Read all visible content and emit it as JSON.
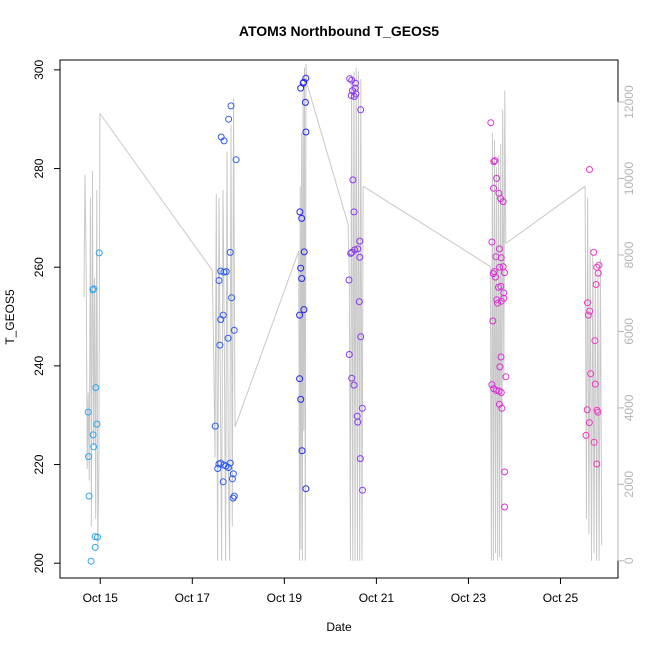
{
  "chart_data": {
    "type": "scatter",
    "title": "ATOM3 Northbound T_GEOS5",
    "xlabel": "Date",
    "ylabel": "T_GEOS5",
    "xlim": [
      "2017-10-14T03:00",
      "2017-10-26T06:00"
    ],
    "ylim": [
      197,
      302
    ],
    "y2lim": [
      -450,
      13100
    ],
    "x_ticks": [
      {
        "date": "2017-10-15T00:00",
        "label": "Oct 15"
      },
      {
        "date": "2017-10-17T00:00",
        "label": "Oct 17"
      },
      {
        "date": "2017-10-19T00:00",
        "label": "Oct 19"
      },
      {
        "date": "2017-10-21T00:00",
        "label": "Oct 21"
      },
      {
        "date": "2017-10-23T00:00",
        "label": "Oct 23"
      },
      {
        "date": "2017-10-25T00:00",
        "label": "Oct 25"
      }
    ],
    "y_ticks": [
      200,
      220,
      240,
      260,
      280,
      300
    ],
    "y2_ticks": [
      0,
      2000,
      4000,
      6000,
      8000,
      10000,
      12000
    ],
    "grid": false,
    "colors": {
      "axis": "#000000",
      "altitude_line": "#c8c8c8",
      "secondary_axis": "#b4b4b4",
      "point_gradient": [
        "#29b6f6",
        "#1a1aff",
        "#8a2be2",
        "#ff1fd0"
      ]
    },
    "series": [
      {
        "role": "points",
        "segments": [
          {
            "color": "#2fa6ee",
            "points": [
              [
                "2017-10-14T20:06",
                255.4
              ],
              [
                "2017-10-14T20:35",
                255.6
              ],
              [
                "2017-10-14T17:42",
                230.6
              ],
              [
                "2017-10-14T17:54",
                221.6
              ],
              [
                "2017-10-14T20:16",
                226.0
              ],
              [
                "2017-10-14T20:35",
                223.6
              ],
              [
                "2017-10-14T18:11",
                213.6
              ],
              [
                "2017-10-14T19:12",
                200.4
              ],
              [
                "2017-10-14T21:21",
                203.2
              ],
              [
                "2017-10-14T21:21",
                205.4
              ],
              [
                "2017-10-14T22:32",
                205.3
              ],
              [
                "2017-10-14T22:15",
                228.2
              ],
              [
                "2017-10-14T21:41",
                235.6
              ],
              [
                "2017-10-14T23:27",
                262.9
              ]
            ]
          },
          {
            "color": "#2f5cf2",
            "points": [
              [
                "2017-10-17T12:00",
                227.8
              ],
              [
                "2017-10-17T13:16",
                219.2
              ],
              [
                "2017-10-17T13:51",
                220.1
              ],
              [
                "2017-10-17T14:49",
                220.3
              ],
              [
                "2017-10-17T16:27",
                219.9
              ],
              [
                "2017-10-17T17:31",
                219.7
              ],
              [
                "2017-10-17T18:48",
                219.4
              ],
              [
                "2017-10-17T19:46",
                220.3
              ],
              [
                "2017-10-17T16:07",
                216.5
              ],
              [
                "2017-10-17T21:26",
                218.1
              ],
              [
                "2017-10-17T20:53",
                217.1
              ],
              [
                "2017-10-17T21:17",
                213.2
              ],
              [
                "2017-10-17T21:54",
                213.6
              ],
              [
                "2017-10-17T14:20",
                244.2
              ],
              [
                "2017-10-17T18:39",
                245.6
              ],
              [
                "2017-10-17T21:50",
                247.2
              ],
              [
                "2017-10-17T16:08",
                250.3
              ],
              [
                "2017-10-17T14:49",
                249.4
              ],
              [
                "2017-10-17T20:28",
                253.8
              ],
              [
                "2017-10-17T13:56",
                257.3
              ],
              [
                "2017-10-17T14:49",
                259.2
              ],
              [
                "2017-10-17T16:28",
                259.0
              ],
              [
                "2017-10-17T17:41",
                259.1
              ],
              [
                "2017-10-17T19:46",
                263.0
              ],
              [
                "2017-10-17T15:05",
                286.4
              ],
              [
                "2017-10-17T16:31",
                285.6
              ],
              [
                "2017-10-17T22:51",
                281.8
              ],
              [
                "2017-10-17T18:54",
                290.0
              ],
              [
                "2017-10-17T20:10",
                292.7
              ]
            ]
          },
          {
            "color": "#2525ee",
            "points": [
              [
                "2017-10-19T11:12",
                298.3
              ],
              [
                "2017-10-19T10:06",
                297.5
              ],
              [
                "2017-10-19T09:50",
                297.3
              ],
              [
                "2017-10-19T08:33",
                296.3
              ],
              [
                "2017-10-19T11:00",
                293.4
              ],
              [
                "2017-10-19T11:14",
                287.4
              ],
              [
                "2017-10-19T08:07",
                271.2
              ],
              [
                "2017-10-19T09:04",
                269.9
              ],
              [
                "2017-10-19T10:22",
                263.1
              ],
              [
                "2017-10-19T08:33",
                259.8
              ],
              [
                "2017-10-19T09:04",
                257.7
              ],
              [
                "2017-10-19T10:13",
                251.4
              ],
              [
                "2017-10-19T07:56",
                250.3
              ],
              [
                "2017-10-19T07:56",
                237.4
              ],
              [
                "2017-10-19T08:33",
                233.2
              ],
              [
                "2017-10-19T09:12",
                222.8
              ],
              [
                "2017-10-19T11:14",
                215.1
              ]
            ]
          },
          {
            "color": "#8c3af0",
            "points": [
              [
                "2017-10-20T10:04",
                298.2
              ],
              [
                "2017-10-20T11:08",
                297.9
              ],
              [
                "2017-10-20T13:03",
                297.3
              ],
              [
                "2017-10-20T12:58",
                296.3
              ],
              [
                "2017-10-20T11:32",
                295.8
              ],
              [
                "2017-10-20T13:20",
                295.1
              ],
              [
                "2017-10-20T10:56",
                294.8
              ],
              [
                "2017-10-20T12:30",
                294.6
              ],
              [
                "2017-10-20T15:50",
                291.9
              ],
              [
                "2017-10-20T11:46",
                277.7
              ],
              [
                "2017-10-20T12:19",
                271.2
              ],
              [
                "2017-10-20T15:21",
                265.3
              ],
              [
                "2017-10-20T14:16",
                263.7
              ],
              [
                "2017-10-20T12:40",
                263.5
              ],
              [
                "2017-10-20T11:10",
                263.0
              ],
              [
                "2017-10-20T10:35",
                262.8
              ],
              [
                "2017-10-20T15:22",
                262.0
              ],
              [
                "2017-10-20T09:42",
                257.4
              ],
              [
                "2017-10-20T15:04",
                253.0
              ],
              [
                "2017-10-20T15:50",
                245.9
              ],
              [
                "2017-10-20T09:53",
                242.3
              ],
              [
                "2017-10-20T11:08",
                237.5
              ],
              [
                "2017-10-20T12:19",
                236.1
              ],
              [
                "2017-10-20T14:00",
                229.8
              ],
              [
                "2017-10-20T14:19",
                228.6
              ],
              [
                "2017-10-20T16:38",
                231.4
              ],
              [
                "2017-10-20T15:35",
                221.2
              ],
              [
                "2017-10-20T16:45",
                214.8
              ]
            ]
          },
          {
            "color": "#dc2fd8",
            "points": [
              [
                "2017-10-23T11:40",
                289.3
              ],
              [
                "2017-10-23T13:48",
                281.6
              ],
              [
                "2017-10-23T13:17",
                281.4
              ],
              [
                "2017-10-23T14:40",
                278.0
              ],
              [
                "2017-10-23T13:05",
                276.0
              ],
              [
                "2017-10-23T15:52",
                275.0
              ],
              [
                "2017-10-23T16:48",
                273.9
              ],
              [
                "2017-10-23T18:06",
                273.3
              ],
              [
                "2017-10-23T12:15",
                265.1
              ],
              [
                "2017-10-23T16:08",
                263.7
              ],
              [
                "2017-10-23T14:20",
                262.1
              ],
              [
                "2017-10-23T17:06",
                261.9
              ],
              [
                "2017-10-23T18:06",
                260.1
              ],
              [
                "2017-10-23T16:15",
                260.0
              ],
              [
                "2017-10-23T13:30",
                259.1
              ],
              [
                "2017-10-23T12:57",
                258.7
              ],
              [
                "2017-10-23T18:50",
                258.9
              ],
              [
                "2017-10-23T14:07",
                258.0
              ],
              [
                "2017-10-23T15:41",
                255.9
              ],
              [
                "2017-10-23T16:57",
                256.1
              ],
              [
                "2017-10-23T15:08",
                252.7
              ],
              [
                "2017-10-23T14:47",
                253.4
              ],
              [
                "2017-10-23T17:09",
                253.1
              ],
              [
                "2017-10-23T18:28",
                253.7
              ],
              [
                "2017-10-23T18:28",
                254.8
              ],
              [
                "2017-10-23T12:43",
                249.1
              ],
              [
                "2017-10-23T17:00",
                241.8
              ],
              [
                "2017-10-23T16:25",
                239.8
              ],
              [
                "2017-10-23T19:31",
                237.8
              ],
              [
                "2017-10-23T12:15",
                236.2
              ],
              [
                "2017-10-23T13:08",
                235.4
              ],
              [
                "2017-10-23T14:36",
                235.0
              ],
              [
                "2017-10-23T16:00",
                234.9
              ],
              [
                "2017-10-23T17:09",
                234.6
              ],
              [
                "2017-10-23T16:08",
                232.2
              ],
              [
                "2017-10-23T17:27",
                231.4
              ],
              [
                "2017-10-23T18:51",
                218.5
              ],
              [
                "2017-10-23T18:51",
                211.4
              ]
            ]
          },
          {
            "color": "#f236c6",
            "points": [
              [
                "2017-10-25T15:09",
                279.8
              ],
              [
                "2017-10-25T17:20",
                263.0
              ],
              [
                "2017-10-25T18:55",
                260.0
              ],
              [
                "2017-10-25T20:04",
                260.4
              ],
              [
                "2017-10-25T19:41",
                258.8
              ],
              [
                "2017-10-25T18:34",
                256.5
              ],
              [
                "2017-10-25T14:05",
                252.8
              ],
              [
                "2017-10-25T15:15",
                251.1
              ],
              [
                "2017-10-25T14:31",
                250.3
              ],
              [
                "2017-10-25T17:57",
                245.1
              ],
              [
                "2017-10-25T15:45",
                238.4
              ],
              [
                "2017-10-25T18:10",
                236.3
              ],
              [
                "2017-10-25T13:57",
                231.1
              ],
              [
                "2017-10-25T19:06",
                231.0
              ],
              [
                "2017-10-25T19:31",
                230.6
              ],
              [
                "2017-10-25T13:20",
                225.9
              ],
              [
                "2017-10-25T15:05",
                228.5
              ],
              [
                "2017-10-25T17:31",
                224.5
              ],
              [
                "2017-10-25T18:57",
                220.1
              ]
            ]
          }
        ]
      },
      {
        "role": "altitude_line",
        "axis": "right",
        "description_visible": false,
        "flights": [
          {
            "start": "2017-10-14T15:30",
            "end": "2017-10-14T23:50",
            "values": [
              6900,
              10100,
              8000,
              2400,
              4400,
              2100,
              9500,
              900,
              10200,
              3000,
              7400,
              1100,
              9700,
              400,
              2300,
              11700
            ]
          },
          {
            "start": "2017-10-17T10:25",
            "end": "2017-10-17T22:15",
            "values": [
              7600,
              5600,
              2700,
              9600,
              0,
              9500,
              4700,
              0,
              9700,
              5900,
              0,
              10700,
              2600,
              0,
              11400,
              900,
              12100,
              3500
            ]
          },
          {
            "start": "2017-10-19T07:30",
            "end": "2017-10-19T11:40",
            "values": [
              8100,
              0,
              9800,
              300,
              11200,
              0,
              12300,
              3400,
              12900,
              0,
              13000,
              12500
            ]
          },
          {
            "start": "2017-10-20T09:15",
            "end": "2017-10-20T17:05",
            "values": [
              8800,
              7500,
              0,
              12700,
              0,
              12800,
              0,
              12900,
              0,
              12800,
              0,
              12600,
              0,
              9800
            ]
          },
          {
            "start": "2017-10-23T11:25",
            "end": "2017-10-23T19:30",
            "values": [
              7700,
              0,
              11200,
              0,
              11000,
              200,
              10300,
              0,
              10600,
              100,
              10900,
              0,
              11800,
              4700,
              12300,
              8300
            ]
          },
          {
            "start": "2017-10-25T12:50",
            "end": "2017-10-25T21:30",
            "values": [
              9800,
              1100,
              9500,
              700,
              8200,
              0,
              8000,
              200,
              7500,
              0,
              7600,
              0,
              7900,
              400
            ]
          }
        ],
        "connectors": [
          [
            "2017-10-14T23:50",
            11700,
            "2017-10-17T10:25",
            7600
          ],
          [
            "2017-10-17T22:15",
            3500,
            "2017-10-19T07:30",
            8100
          ],
          [
            "2017-10-19T11:40",
            12500,
            "2017-10-20T09:15",
            8800
          ],
          [
            "2017-10-20T17:05",
            9800,
            "2017-10-23T11:25",
            7700
          ],
          [
            "2017-10-23T19:30",
            8300,
            "2017-10-25T12:50",
            9800
          ]
        ]
      }
    ]
  }
}
